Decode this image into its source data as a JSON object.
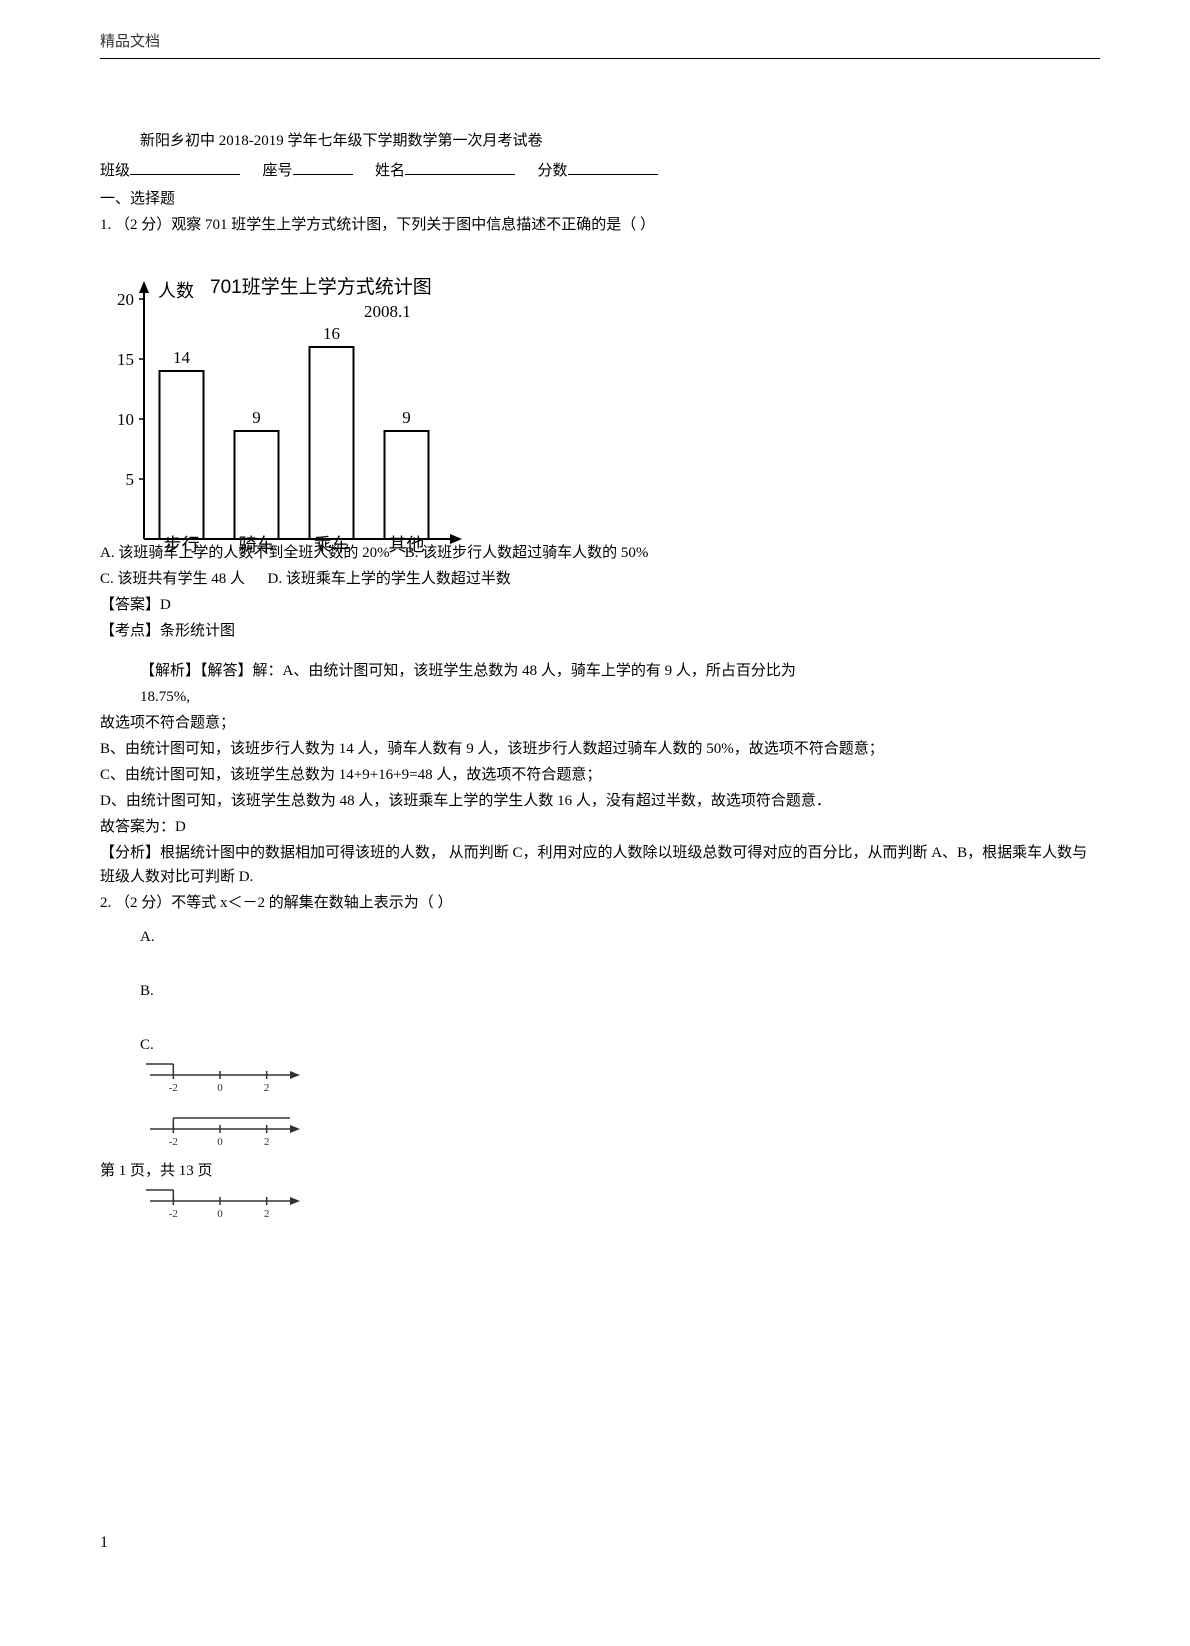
{
  "header": {
    "text": "精品文档"
  },
  "title": "新阳乡初中 2018-2019 学年七年级下学期数学第一次月考试卷",
  "form": {
    "class_label": "班级",
    "seat_label": "座号",
    "name_label": "姓名",
    "score_label": "分数"
  },
  "section1": "一、选择题",
  "q1": {
    "stem": "1.  （2 分）观察 701 班学生上学方式统计图，下列关于图中信息描述不正确的是（      ）",
    "chart": {
      "type": "bar",
      "title": "701班学生上学方式统计图",
      "subtitle": "2008.1",
      "ylabel": "人数",
      "categories": [
        "步行",
        "骑车",
        "乘车",
        "其他"
      ],
      "values": [
        14,
        9,
        16,
        9
      ],
      "value_labels": [
        "14",
        "9",
        "16",
        "9"
      ],
      "yticks": [
        5,
        10,
        15,
        20
      ],
      "ylim": [
        0,
        20
      ],
      "bar_fill": "#ffffff",
      "bar_stroke": "#000000",
      "axis_color": "#000000",
      "text_color": "#000000",
      "bg": "#ffffff",
      "category_y_offset": -8
    },
    "optA": "A. 该班骑车上学的人数不到全班人数的    20%",
    "optB": "B. 该班步行人数超过骑车人数的      50%",
    "optC": "C. 该班共有学生      48 人",
    "optD": "D. 该班乘车上学的学生人数超过半数",
    "answer_label": "【答案】D",
    "kaodian_label": "【考点】条形统计图",
    "jiexi1": "【解析】【解答】解：A、由统计图可知，该班学生总数为      48 人，骑车上学的有      9 人，所占百分比为",
    "jiexi1b": "18.75%,",
    "jiexi2": "故选项不符合题意；",
    "jiexi3": "B、由统计图可知，该班步行人数为 14 人，骑车人数有  9 人，该班步行人数超过骑车人数的      50%，故选项不符合题意；",
    "jiexi4": "C、由统计图可知，该班学生总数为 14+9+16+9=48 人，故选项不符合题意；",
    "jiexi5": "D、由统计图可知，该班学生总数为 48 人，该班乘车上学的学生人数      16 人，没有超过半数，故选项符合题意．",
    "jiexi6": "故答案为：D",
    "fenxi": "【分析】根据统计图中的数据相加可得该班的人数，      从而判断  C，利用对应的人数除以班级总数可得对应的百分比，从而判断      A、B，根据乘车人数与班级人数对比可判断    D."
  },
  "q2": {
    "stem": "2.  （2 分）不等式 x＜－2 的解集在数轴上表示为（      ）",
    "optA": "A.",
    "optB": "B.",
    "optC": "C.",
    "numline": {
      "ticks": [
        -2,
        0,
        2
      ],
      "tick_labels": [
        "-2",
        "0",
        "2"
      ],
      "axis_color": "#333333",
      "width": 150,
      "height": 30,
      "bracket_x": -2,
      "bracket_open_up": true
    }
  },
  "footer": {
    "text": "第 1 页，共 13 页"
  },
  "pagenum_bottom": "1"
}
